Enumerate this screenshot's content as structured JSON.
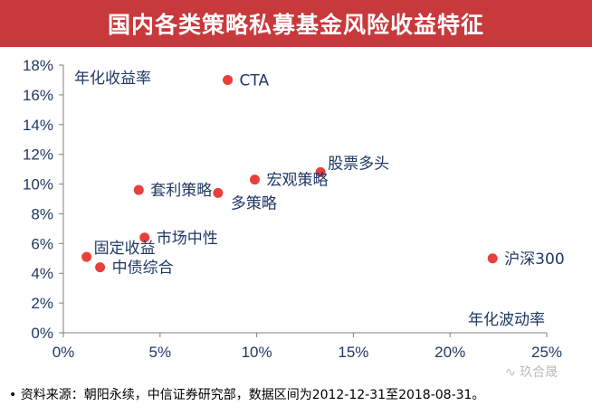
{
  "title": "国内各类策略私募基金风险收益特征",
  "source_text": "• 资料来源：朝阳永续，中信证券研究部，数据区间为2012-12-31至2018-08-31。",
  "watermark": "∿ 玖合晟",
  "colors": {
    "title_bg": "#c8393c",
    "point": "#e8403c",
    "label": "#1f3864",
    "axis": "#7f7f7f"
  },
  "chart_data": {
    "type": "scatter",
    "xlabel": "年化波动率",
    "ylabel": "年化收益率",
    "xlim": [
      0,
      25
    ],
    "ylim": [
      0,
      18
    ],
    "x_ticks": [
      0,
      5,
      10,
      15,
      20,
      25
    ],
    "y_ticks": [
      0,
      2,
      4,
      6,
      8,
      10,
      12,
      14,
      16,
      18
    ],
    "x_tick_labels": [
      "0%",
      "5%",
      "10%",
      "15%",
      "20%",
      "25%"
    ],
    "y_tick_labels": [
      "0%",
      "2%",
      "4%",
      "6%",
      "8%",
      "10%",
      "12%",
      "14%",
      "16%",
      "18%"
    ],
    "grid": false,
    "points": [
      {
        "label": "CTA",
        "x": 8.5,
        "y": 17.0,
        "label_pos": "right"
      },
      {
        "label": "股票多头",
        "x": 13.3,
        "y": 10.8,
        "label_pos": "upper-right"
      },
      {
        "label": "宏观策略",
        "x": 9.9,
        "y": 10.3,
        "label_pos": "right"
      },
      {
        "label": "套利策略",
        "x": 3.9,
        "y": 9.6,
        "label_pos": "right"
      },
      {
        "label": "多策略",
        "x": 8.0,
        "y": 9.4,
        "label_pos": "lower-right"
      },
      {
        "label": "市场中性",
        "x": 4.2,
        "y": 6.4,
        "label_pos": "right"
      },
      {
        "label": "固定收益",
        "x": 1.2,
        "y": 5.1,
        "label_pos": "upper-right"
      },
      {
        "label": "中债综合",
        "x": 1.9,
        "y": 4.4,
        "label_pos": "right"
      },
      {
        "label": "沪深300",
        "x": 22.2,
        "y": 5.0,
        "label_pos": "right"
      }
    ]
  }
}
